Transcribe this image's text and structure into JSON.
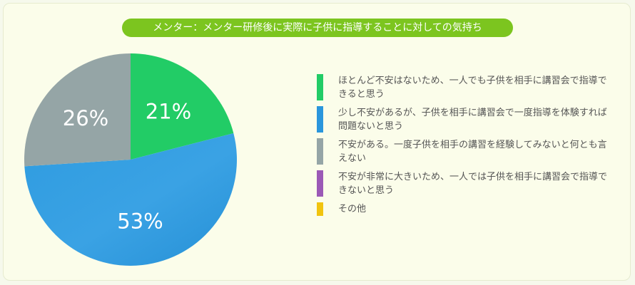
{
  "chart_data": {
    "type": "pie",
    "title": "メンター：メンター研修後に実際に子供に指導することに対しての気持ち",
    "slices": [
      {
        "label": "ほとんど不安はないため、一人でも子供を相手に講習会で指導できると思う",
        "value": 21,
        "display": "21%",
        "color": "#22cc66"
      },
      {
        "label": "少し不安があるが、子供を相手に講習会で一度指導を体験すれば問題ないと思う",
        "value": 53,
        "display": "53%",
        "color": "#2a96dc"
      },
      {
        "label": "不安がある。一度子供を相手の講習を経験してみないと何とも言えない",
        "value": 26,
        "display": "26%",
        "color": "#95a5a6"
      },
      {
        "label": "不安が非常に大きいため、一人では子供を相手に講習会で指導できないと思う",
        "value": 0,
        "display": "",
        "color": "#9b59b6"
      },
      {
        "label": "その他",
        "value": 0,
        "display": "",
        "color": "#f1c40f"
      }
    ],
    "legend_position": "right"
  }
}
